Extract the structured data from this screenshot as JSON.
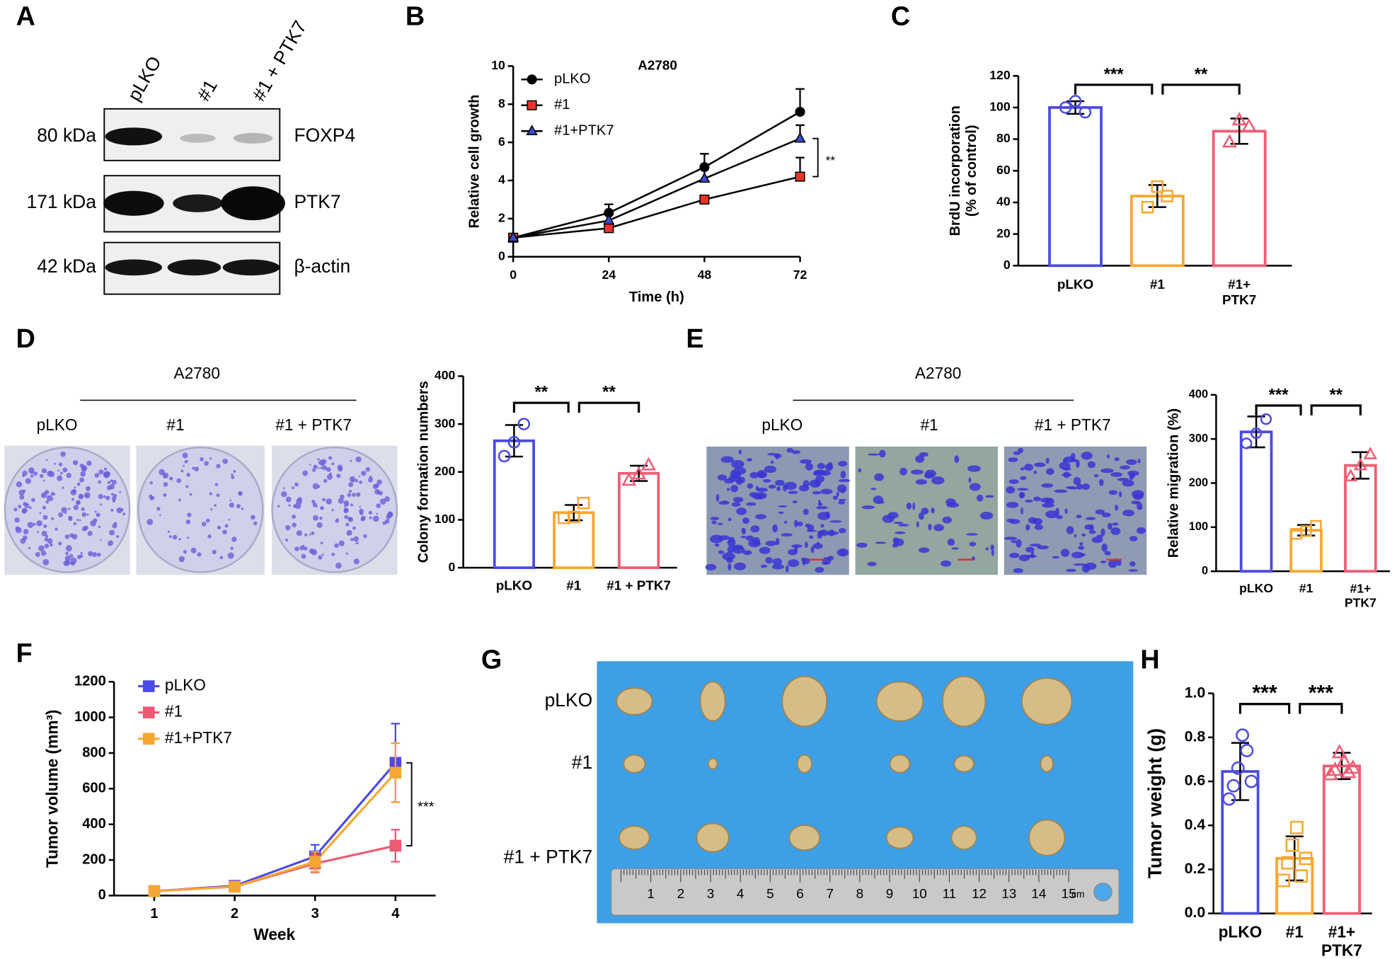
{
  "panel_labels": [
    "A",
    "B",
    "C",
    "D",
    "E",
    "F",
    "G",
    "H"
  ],
  "western_blot": {
    "lanes": [
      "pLKO",
      "#1",
      "#1 + PTK7"
    ],
    "rows": [
      {
        "size": "80 kDa",
        "protein": "FOXP4"
      },
      {
        "size": "171 kDa",
        "protein": "PTK7"
      },
      {
        "size": "42 kDa",
        "protein": "β-actin"
      }
    ]
  },
  "colony_formation": {
    "cell_line": "A2780",
    "groups": [
      "pLKO",
      "#1",
      "#1 + PTK7"
    ]
  },
  "migration": {
    "cell_line": "A2780",
    "groups": [
      "pLKO",
      "#1",
      "#1 + PTK7"
    ]
  },
  "xenograft": {
    "groups": [
      "pLKO",
      "#1",
      "#1 + PTK7"
    ],
    "ruler_labels": [
      "1",
      "2",
      "3",
      "4",
      "5",
      "6",
      "7",
      "8",
      "9",
      "10",
      "11",
      "12",
      "13",
      "14",
      "15",
      "cm"
    ]
  },
  "chart_data": [
    {
      "type": "line",
      "title": "A2780",
      "x_label": "Time (h)",
      "y_label": "Relative cell growth",
      "x": [
        0,
        24,
        48,
        72
      ],
      "xlim": [
        0,
        72
      ],
      "xticks": [
        0,
        24,
        48,
        72
      ],
      "ylim": [
        0,
        10
      ],
      "yticks": [
        0,
        2,
        4,
        6,
        8,
        10
      ],
      "line_color": "#000000",
      "error_bars": "up",
      "series": [
        {
          "name": "pLKO",
          "color": "#000000",
          "marker": "circle",
          "values": [
            1,
            2.3,
            4.7,
            7.6
          ],
          "errors": [
            0,
            0.45,
            0.7,
            1.2
          ]
        },
        {
          "name": "#1",
          "color": "#e8352a",
          "marker": "square",
          "values": [
            1,
            1.5,
            3,
            4.2
          ],
          "errors": [
            0,
            0.1,
            0.2,
            1
          ]
        },
        {
          "name": "#1+PTK7",
          "color": "#3a4bc8",
          "marker": "triangle",
          "values": [
            1,
            1.9,
            4.1,
            6.2
          ],
          "errors": [
            0,
            0.3,
            0.5,
            0.7
          ]
        }
      ],
      "annotations": [
        "**"
      ]
    },
    {
      "type": "bar",
      "y_label": "BrdU incorporation\n(% of control)",
      "categories": [
        "pLKO",
        "#1",
        "#1+\nPTK7"
      ],
      "colors": [
        "#4b4be0",
        "#f6a733",
        "#ef5d75"
      ],
      "markers": [
        "circle",
        "square",
        "triangle"
      ],
      "values": [
        100,
        44,
        85
      ],
      "errors": [
        4,
        7,
        8
      ],
      "points": [
        [
          100,
          97,
          104
        ],
        [
          37,
          44,
          50
        ],
        [
          78,
          88,
          92
        ]
      ],
      "ylim": [
        0,
        120
      ],
      "yticks": [
        0,
        20,
        40,
        60,
        80,
        100,
        120
      ],
      "annotations": [
        "***",
        "**"
      ]
    },
    {
      "type": "bar",
      "y_label": "Colony formation numbers",
      "categories": [
        "pLKO",
        "#1",
        "#1 + PTK7"
      ],
      "colors": [
        "#4b4be0",
        "#f6a733",
        "#ef5d75"
      ],
      "markers": [
        "circle",
        "square",
        "triangle"
      ],
      "values": [
        265,
        115,
        197
      ],
      "errors": [
        33,
        16,
        16
      ],
      "points": [
        [
          233,
          300,
          262
        ],
        [
          104,
          135,
          106
        ],
        [
          182,
          214,
          195
        ]
      ],
      "ylim": [
        0,
        400
      ],
      "yticks": [
        0,
        100,
        200,
        300,
        400
      ],
      "annotations": [
        "**",
        "**"
      ]
    },
    {
      "type": "bar",
      "y_label": "Relative migration (%)",
      "categories": [
        "pLKO",
        "#1",
        "#1+\nPTK7"
      ],
      "colors": [
        "#4b4be0",
        "#f6a733",
        "#ef5d75"
      ],
      "markers": [
        "circle",
        "square",
        "triangle"
      ],
      "values": [
        316,
        93,
        240
      ],
      "errors": [
        35,
        12,
        30
      ],
      "points": [
        [
          290,
          345,
          313
        ],
        [
          85,
          103,
          91
        ],
        [
          215,
          265,
          240
        ]
      ],
      "ylim": [
        0,
        400
      ],
      "yticks": [
        0,
        100,
        200,
        300,
        400
      ],
      "annotations": [
        "***",
        "**"
      ]
    },
    {
      "type": "line",
      "x_label": "Week",
      "y_label": "Tumor volume (mm³)",
      "x": [
        1,
        2,
        3,
        4
      ],
      "xlim": [
        0.5,
        4.5
      ],
      "xticks": [
        1,
        2,
        3,
        4
      ],
      "ylim": [
        0,
        1200
      ],
      "yticks": [
        0,
        200,
        400,
        600,
        800,
        1000,
        1200
      ],
      "error_bars": "both",
      "series": [
        {
          "name": "pLKO",
          "color": "#4a4ae6",
          "marker": "square",
          "values": [
            25,
            55,
            220,
            745
          ],
          "errors": [
            5,
            8,
            65,
            220
          ]
        },
        {
          "name": "#1",
          "color": "#ee5a72",
          "marker": "square",
          "values": [
            25,
            50,
            180,
            280
          ],
          "errors": [
            5,
            8,
            50,
            90
          ]
        },
        {
          "name": "#1+PTK7",
          "color": "#f6a733",
          "marker": "square",
          "values": [
            25,
            50,
            190,
            690
          ],
          "errors": [
            5,
            8,
            55,
            165
          ]
        }
      ],
      "annotations": [
        "***"
      ]
    },
    {
      "type": "bar",
      "y_label": "Tumor weight (g)",
      "categories": [
        "pLKO",
        "#1",
        "#1+\nPTK7"
      ],
      "colors": [
        "#4b4be0",
        "#f6a733",
        "#ef5d75"
      ],
      "markers": [
        "circle",
        "square",
        "triangle"
      ],
      "values": [
        0.645,
        0.25,
        0.67
      ],
      "errors": [
        0.13,
        0.1,
        0.06
      ],
      "points": [
        [
          0.52,
          0.58,
          0.66,
          0.81,
          0.74,
          0.6
        ],
        [
          0.15,
          0.23,
          0.31,
          0.39,
          0.17,
          0.25
        ],
        [
          0.63,
          0.65,
          0.73,
          0.69,
          0.64,
          0.66
        ]
      ],
      "ylim": [
        0,
        1
      ],
      "yticks": [
        {
          "value": 0,
          "label": "0.0"
        },
        0.2,
        0.4,
        0.6,
        0.8,
        {
          "value": 1,
          "label": "1.0"
        }
      ],
      "annotations": [
        "***",
        "***"
      ]
    }
  ]
}
